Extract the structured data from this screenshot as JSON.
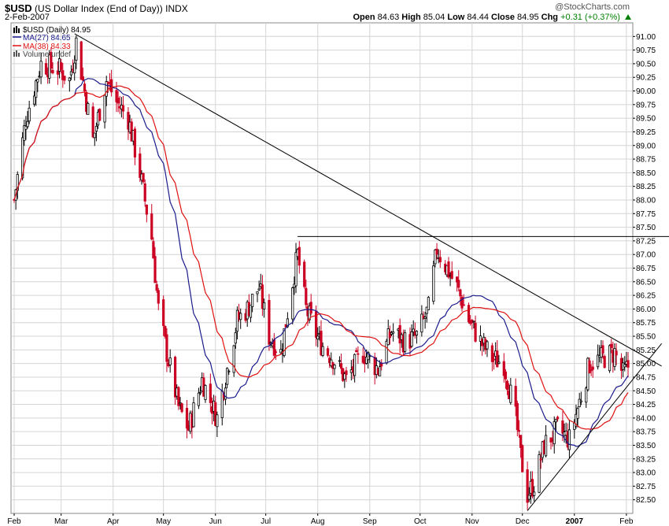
{
  "header": {
    "symbol": "$USD",
    "name": "(US Dollar Index (End of Day))",
    "exchange": "INDX",
    "date": "2-Feb-2007",
    "credit": "@StockCharts.com",
    "open_label": "Open",
    "open": "84.63",
    "high_label": "High",
    "high": "85.04",
    "low_label": "Low",
    "low": "84.44",
    "close_label": "Close",
    "close": "84.95",
    "chg_label": "Chg",
    "chg": "+0.31 (+0.37%)"
  },
  "legend": {
    "price": "$USD (Daily) 84.95",
    "ma27": "MA(27) 84.65",
    "ma38": "MA(38) 84.33",
    "volume": "Volume undef"
  },
  "colors": {
    "up": "#000000",
    "down": "#cc0022",
    "ma27": "#1a1a8c",
    "ma38": "#e01010",
    "grid": "#d4d4d4",
    "trendline": "#000000"
  },
  "chart_data": {
    "type": "candlestick",
    "title": "$USD (US Dollar Index (End of Day))",
    "y_range": [
      82.25,
      91.25
    ],
    "y_ticks": [
      "82.50",
      "82.75",
      "83.00",
      "83.25",
      "83.50",
      "83.75",
      "84.00",
      "84.25",
      "84.50",
      "84.75",
      "85.00",
      "85.25",
      "85.50",
      "85.75",
      "86.00",
      "86.25",
      "86.50",
      "86.75",
      "87.00",
      "87.25",
      "87.50",
      "87.75",
      "88.00",
      "88.25",
      "88.50",
      "88.75",
      "89.00",
      "89.25",
      "89.50",
      "89.75",
      "90.00",
      "90.25",
      "90.50",
      "90.75",
      "91.00"
    ],
    "x_labels": [
      "Feb",
      "Mar",
      "Apr",
      "May",
      "Jun",
      "Jul",
      "Aug",
      "Sep",
      "Oct",
      "Nov",
      "Dec",
      "2007",
      "Feb"
    ],
    "x_start": "2006-02-01",
    "x_end": "2007-02-02",
    "price_anchors": [
      [
        "2006-02-01",
        88.0
      ],
      [
        "2006-02-08",
        89.5
      ],
      [
        "2006-02-17",
        90.5
      ],
      [
        "2006-02-28",
        90.4
      ],
      [
        "2006-03-06",
        90.2
      ],
      [
        "2006-03-10",
        90.9
      ],
      [
        "2006-03-20",
        89.1
      ],
      [
        "2006-03-28",
        90.2
      ],
      [
        "2006-04-03",
        89.8
      ],
      [
        "2006-04-10",
        89.5
      ],
      [
        "2006-04-17",
        88.5
      ],
      [
        "2006-04-24",
        87.3
      ],
      [
        "2006-04-28",
        86.0
      ],
      [
        "2006-05-03",
        85.2
      ],
      [
        "2006-05-10",
        84.2
      ],
      [
        "2006-05-16",
        83.8
      ],
      [
        "2006-05-24",
        84.7
      ],
      [
        "2006-06-02",
        84.0
      ],
      [
        "2006-06-08",
        84.9
      ],
      [
        "2006-06-14",
        85.8
      ],
      [
        "2006-06-20",
        86.0
      ],
      [
        "2006-06-27",
        86.4
      ],
      [
        "2006-07-03",
        85.5
      ],
      [
        "2006-07-10",
        85.2
      ],
      [
        "2006-07-17",
        86.5
      ],
      [
        "2006-07-20",
        87.0
      ],
      [
        "2006-07-25",
        86.0
      ],
      [
        "2006-08-02",
        85.4
      ],
      [
        "2006-08-10",
        85.1
      ],
      [
        "2006-08-18",
        84.7
      ],
      [
        "2006-08-28",
        85.2
      ],
      [
        "2006-09-06",
        84.9
      ],
      [
        "2006-09-14",
        85.6
      ],
      [
        "2006-09-22",
        85.4
      ],
      [
        "2006-09-29",
        85.5
      ],
      [
        "2006-10-06",
        86.0
      ],
      [
        "2006-10-11",
        87.1
      ],
      [
        "2006-10-16",
        86.8
      ],
      [
        "2006-10-23",
        86.4
      ],
      [
        "2006-10-30",
        85.8
      ],
      [
        "2006-11-06",
        85.4
      ],
      [
        "2006-11-13",
        85.1
      ],
      [
        "2006-11-20",
        85.0
      ],
      [
        "2006-11-27",
        84.0
      ],
      [
        "2006-11-30",
        83.3
      ],
      [
        "2006-12-04",
        82.6
      ],
      [
        "2006-12-08",
        82.8
      ],
      [
        "2006-12-14",
        83.5
      ],
      [
        "2006-12-22",
        83.8
      ],
      [
        "2006-12-29",
        83.6
      ],
      [
        "2007-01-04",
        84.3
      ],
      [
        "2007-01-10",
        85.0
      ],
      [
        "2007-01-18",
        85.1
      ],
      [
        "2007-01-25",
        85.2
      ],
      [
        "2007-01-30",
        84.8
      ],
      [
        "2007-02-02",
        84.95
      ]
    ],
    "horizontal_line": 87.33,
    "resistance_line": [
      [
        "2006-03-09",
        91.05
      ],
      [
        "2007-02-02",
        85.3
      ]
    ],
    "support_line": [
      [
        "2006-12-04",
        82.3
      ],
      [
        "2007-02-02",
        84.6
      ]
    ],
    "series": [
      {
        "name": "$USD (Daily)",
        "kind": "candles",
        "last": 84.95
      },
      {
        "name": "MA(27)",
        "kind": "line",
        "last": 84.65
      },
      {
        "name": "MA(38)",
        "kind": "line",
        "last": 84.33
      }
    ]
  }
}
